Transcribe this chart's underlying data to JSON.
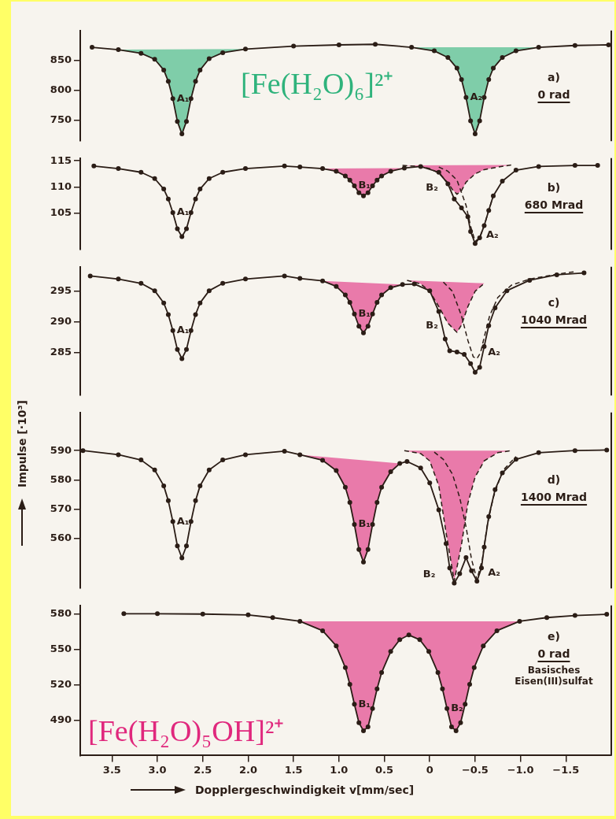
{
  "chart_data": [
    {
      "type": "line",
      "title": "[Fe(H₂O)₆]²⁺",
      "xlim": [
        3.85,
        -2.0
      ],
      "ylim": [
        715,
        900
      ],
      "yticks": [
        750,
        800,
        850
      ],
      "tick_labels": "y",
      "annotations": [
        "a)",
        "0 rad",
        {
          "text": "A₁",
          "x": 2.83,
          "y": 786
        },
        {
          "text": "A₂",
          "x": -0.4,
          "y": 788
        }
      ],
      "series": [
        {
          "marker": "circle",
          "color": "#2b1d16",
          "x": [
            3.72,
            3.43,
            3.18,
            3.03,
            2.93,
            2.88,
            2.83,
            2.78,
            2.73,
            2.68,
            2.63,
            2.58,
            2.53,
            2.43,
            2.28,
            2.03,
            1.5,
            1.0,
            0.6,
            0.2,
            -0.05,
            -0.2,
            -0.3,
            -0.35,
            -0.4,
            -0.45,
            -0.5,
            -0.55,
            -0.6,
            -0.65,
            -0.7,
            -0.8,
            -0.95,
            -1.2,
            -1.6,
            -1.97
          ],
          "values": [
            872,
            868,
            862,
            852,
            834,
            815,
            786,
            748,
            727,
            748,
            786,
            815,
            834,
            853,
            863,
            869,
            874,
            876,
            877,
            872,
            866,
            855,
            837,
            818,
            788,
            749,
            727,
            749,
            788,
            818,
            837,
            855,
            866,
            872,
            875,
            876
          ]
        },
        {
          "type": "area",
          "color": "#2fb37c",
          "x": [
            3.43,
            3.18,
            3.03,
            2.93,
            2.88,
            2.83,
            2.78,
            2.73,
            2.68,
            2.63,
            2.58,
            2.53,
            2.43,
            2.28,
            2.03
          ],
          "values": [
            868,
            862,
            852,
            834,
            815,
            786,
            748,
            727,
            748,
            786,
            815,
            834,
            853,
            863,
            869
          ]
        },
        {
          "type": "area",
          "color": "#2fb37c",
          "x": [
            0.2,
            -0.05,
            -0.2,
            -0.3,
            -0.35,
            -0.4,
            -0.45,
            -0.5,
            -0.55,
            -0.6,
            -0.65,
            -0.7,
            -0.8,
            -0.95,
            -1.2
          ],
          "values": [
            872,
            866,
            855,
            837,
            818,
            788,
            749,
            727,
            749,
            788,
            818,
            837,
            855,
            866,
            872
          ]
        }
      ]
    },
    {
      "type": "line",
      "xlim": [
        3.85,
        -2.0
      ],
      "ylim": [
        98,
        115.5
      ],
      "yticks": [
        105,
        110,
        115
      ],
      "tick_labels": "y",
      "annotations": [
        "b)",
        "680 Mrad",
        {
          "text": "A₁",
          "x": 2.83,
          "y": 105.1
        },
        {
          "text": "B₁",
          "x": 0.83,
          "y": 110.2
        },
        {
          "text": "B₂",
          "x": -0.3,
          "y": 108.6
        },
        {
          "text": "A₂",
          "x": -0.5,
          "y": 99.6
        }
      ],
      "series": [
        {
          "marker": "circle",
          "color": "#2b1d16",
          "x": [
            3.7,
            3.43,
            3.18,
            3.03,
            2.93,
            2.88,
            2.83,
            2.78,
            2.73,
            2.68,
            2.63,
            2.58,
            2.53,
            2.43,
            2.28,
            2.03,
            1.6,
            1.43,
            1.18,
            1.03,
            0.93,
            0.88,
            0.83,
            0.78,
            0.73,
            0.68,
            0.63,
            0.58,
            0.53,
            0.43,
            0.28,
            0.1,
            -0.1,
            -0.2,
            -0.27,
            -0.35,
            -0.42,
            -0.45,
            -0.5,
            -0.55,
            -0.6,
            -0.65,
            -0.7,
            -0.8,
            -0.95,
            -1.2,
            -1.6,
            -1.85
          ],
          "values": [
            114.0,
            113.5,
            112.8,
            111.6,
            109.6,
            107.7,
            105.1,
            102.0,
            100.5,
            102.0,
            105.1,
            107.7,
            109.6,
            111.6,
            112.8,
            113.5,
            114.0,
            113.8,
            113.5,
            113.0,
            112.1,
            111.3,
            110.2,
            108.9,
            108.3,
            108.9,
            110.2,
            111.3,
            112.1,
            113.0,
            113.6,
            113.9,
            112.8,
            110.6,
            107.7,
            106.0,
            104.3,
            101.5,
            99.2,
            100.3,
            102.6,
            105.5,
            108.3,
            111.1,
            113.2,
            113.9,
            114.1,
            114.1
          ]
        },
        {
          "type": "line",
          "color": "#2b1d16",
          "line_style": "dashed",
          "marker": "none",
          "x": [
            -0.1,
            -0.2,
            -0.3,
            -0.4,
            -0.45,
            -0.5,
            -0.55,
            -0.6,
            -0.65,
            -0.7
          ],
          "values": [
            113.8,
            113.0,
            111.3,
            106.5,
            102.5,
            99.6,
            100.3,
            102.6,
            105.5,
            108.3
          ]
        },
        {
          "type": "area",
          "color": "#e0287d",
          "x": [
            1.18,
            1.03,
            0.93,
            0.88,
            0.83,
            0.78,
            0.73,
            0.68,
            0.63,
            0.58,
            0.53,
            0.43,
            0.28
          ],
          "values": [
            113.5,
            113.0,
            112.1,
            111.3,
            110.2,
            108.9,
            108.3,
            108.9,
            110.2,
            111.3,
            112.1,
            113.0,
            113.6
          ]
        },
        {
          "type": "area",
          "color": "#e0287d",
          "line_style": "dashed",
          "x": [
            0.3,
            0.1,
            0,
            -0.1,
            -0.2,
            -0.25,
            -0.3,
            -0.35,
            -0.4,
            -0.5,
            -0.6,
            -0.75,
            -0.9
          ],
          "values": [
            114.1,
            113.9,
            113.5,
            112.6,
            110.8,
            109.5,
            108.6,
            109.3,
            110.9,
            112.5,
            113.3,
            113.8,
            114.2
          ]
        }
      ]
    },
    {
      "type": "line",
      "xlim": [
        3.85,
        -2.0
      ],
      "ylim": [
        278,
        299
      ],
      "yticks": [
        285,
        290,
        295
      ],
      "tick_labels": "y",
      "annotations": [
        "c)",
        "1040 Mrad",
        {
          "text": "A₁",
          "x": 2.83,
          "y": 288.6
        },
        {
          "text": "B₁",
          "x": 0.83,
          "y": 291.3
        },
        {
          "text": "B₂",
          "x": -0.3,
          "y": 288.3
        },
        {
          "text": "A₂",
          "x": -0.52,
          "y": 284.0
        }
      ],
      "series": [
        {
          "marker": "circle",
          "color": "#2b1d16",
          "x": [
            3.74,
            3.43,
            3.18,
            3.03,
            2.93,
            2.88,
            2.83,
            2.78,
            2.73,
            2.68,
            2.63,
            2.58,
            2.53,
            2.43,
            2.28,
            2.03,
            1.6,
            1.43,
            1.18,
            1.03,
            0.93,
            0.88,
            0.83,
            0.78,
            0.73,
            0.68,
            0.63,
            0.58,
            0.53,
            0.43,
            0.3,
            0.17,
            0,
            -0.1,
            -0.17,
            -0.22,
            -0.3,
            -0.38,
            -0.45,
            -0.5,
            -0.55,
            -0.6,
            -0.65,
            -0.72,
            -0.85,
            -1.1,
            -1.4,
            -1.7
          ],
          "values": [
            297.5,
            297.0,
            296.3,
            295.1,
            293.1,
            291.2,
            288.6,
            285.5,
            284.0,
            285.5,
            288.6,
            291.2,
            293.1,
            295.1,
            296.3,
            297.0,
            297.5,
            297.1,
            296.7,
            295.8,
            294.4,
            293.2,
            291.3,
            289.3,
            288.2,
            289.3,
            291.3,
            293.2,
            294.4,
            295.6,
            296.1,
            296.2,
            295.1,
            291.7,
            287.2,
            285.3,
            285.1,
            284.7,
            283.2,
            281.8,
            282.6,
            286.0,
            289.4,
            292.3,
            295.1,
            296.8,
            297.7,
            298.0
          ]
        },
        {
          "type": "line",
          "color": "#2b1d16",
          "line_style": "dashed",
          "marker": "none",
          "x": [
            -0.15,
            -0.25,
            -0.35,
            -0.42,
            -0.48,
            -0.52,
            -0.56,
            -0.6,
            -0.66,
            -0.75,
            -0.9,
            -1.1,
            -1.4,
            -1.6
          ],
          "values": [
            296.5,
            295.0,
            291.0,
            287.0,
            284.3,
            284.0,
            285.0,
            287.5,
            291.0,
            294.0,
            296.0,
            297.0,
            297.8,
            298.2
          ]
        },
        {
          "type": "area",
          "color": "#e0287d",
          "x": [
            1.18,
            1.03,
            0.93,
            0.88,
            0.83,
            0.78,
            0.73,
            0.68,
            0.63,
            0.58,
            0.53,
            0.43,
            0.3
          ],
          "values": [
            296.7,
            295.8,
            294.4,
            293.2,
            291.3,
            289.3,
            288.2,
            289.3,
            291.3,
            293.2,
            294.4,
            295.6,
            296.1
          ]
        },
        {
          "type": "area",
          "color": "#e0287d",
          "line_style": "dashed",
          "x": [
            0.25,
            0.1,
            0,
            -0.1,
            -0.2,
            -0.3,
            -0.35,
            -0.42,
            -0.5,
            -0.6
          ],
          "values": [
            296.8,
            296.2,
            295.0,
            292.5,
            289.8,
            288.3,
            289.5,
            292.5,
            295.0,
            296.3
          ]
        }
      ]
    },
    {
      "type": "line",
      "xlim": [
        3.85,
        -2.0
      ],
      "ylim": [
        543,
        603
      ],
      "yticks": [
        560,
        570,
        580,
        590
      ],
      "tick_labels": "y",
      "ylabel": "Impulse [·10³]",
      "annotations": [
        "d)",
        "1400 Mrad",
        {
          "text": "A₁",
          "x": 2.83,
          "y": 565.8
        },
        {
          "text": "B₁",
          "x": 0.83,
          "y": 564.8
        },
        {
          "text": "B₂",
          "x": -0.27,
          "y": 545.5
        },
        {
          "text": "A₂",
          "x": -0.52,
          "y": 546.0
        }
      ],
      "series": [
        {
          "marker": "circle",
          "color": "#2b1d16",
          "x": [
            3.82,
            3.43,
            3.18,
            3.03,
            2.93,
            2.88,
            2.83,
            2.78,
            2.73,
            2.68,
            2.63,
            2.58,
            2.53,
            2.43,
            2.28,
            2.03,
            1.6,
            1.43,
            1.18,
            1.03,
            0.93,
            0.88,
            0.83,
            0.78,
            0.73,
            0.68,
            0.63,
            0.58,
            0.53,
            0.43,
            0.33,
            0.25,
            0.1,
            0,
            -0.1,
            -0.18,
            -0.22,
            -0.27,
            -0.33,
            -0.4,
            -0.46,
            -0.52,
            -0.57,
            -0.6,
            -0.65,
            -0.72,
            -0.8,
            -0.95,
            -1.2,
            -1.6,
            -1.95
          ],
          "values": [
            590.0,
            588.6,
            586.8,
            583.4,
            578.0,
            572.9,
            565.8,
            557.5,
            553.4,
            557.5,
            565.8,
            572.9,
            578.0,
            583.4,
            586.8,
            588.6,
            589.8,
            588.6,
            586.7,
            583.2,
            577.5,
            572.3,
            564.8,
            556.3,
            552.0,
            556.3,
            564.8,
            572.3,
            577.5,
            582.8,
            585.6,
            586.3,
            584.1,
            579.0,
            569.8,
            558.3,
            550.0,
            544.8,
            548.0,
            553.5,
            549.0,
            545.5,
            550.0,
            557.1,
            567.5,
            576.7,
            582.4,
            587.0,
            589.3,
            590.0,
            590.2
          ]
        },
        {
          "type": "line",
          "color": "#2b1d16",
          "line_style": "dashed",
          "marker": "none",
          "x": [
            -0.05,
            -0.15,
            -0.25,
            -0.33,
            -0.4,
            -0.46,
            -0.52,
            -0.58,
            -0.63,
            -0.7,
            -0.8,
            -0.95
          ],
          "values": [
            589.5,
            587.0,
            582.0,
            574.0,
            564.0,
            553.0,
            546.0,
            553.0,
            564.0,
            574.0,
            583.0,
            588.0
          ]
        },
        {
          "type": "area",
          "color": "#e0287d",
          "x": [
            1.43,
            1.18,
            1.03,
            0.93,
            0.88,
            0.83,
            0.78,
            0.73,
            0.68,
            0.63,
            0.58,
            0.53,
            0.43,
            0.33
          ],
          "values": [
            588.6,
            586.7,
            583.2,
            577.5,
            572.3,
            564.8,
            556.3,
            552.0,
            556.3,
            564.8,
            572.3,
            577.5,
            582.8,
            585.6
          ]
        },
        {
          "type": "area",
          "color": "#e0287d",
          "line_style": "dashed",
          "x": [
            0.28,
            0.1,
            0,
            -0.1,
            -0.18,
            -0.27,
            -0.35,
            -0.42,
            -0.5,
            -0.6,
            -0.75,
            -0.9
          ],
          "values": [
            590.0,
            589.0,
            586.5,
            578.0,
            562.0,
            545.5,
            558.0,
            572.0,
            581.0,
            586.5,
            589.3,
            590.0
          ]
        }
      ]
    },
    {
      "type": "line",
      "title": "[Fe(H₂O)₅OH]²⁺",
      "xlabel": "Dopplergeschwindigkeit v[mm/sec]",
      "xlim": [
        3.85,
        -2.0
      ],
      "ylim": [
        460,
        587
      ],
      "yticks": [
        490,
        520,
        550,
        580
      ],
      "xticks": [
        3.5,
        {
          "value": 3,
          "label": "3.0"
        },
        2.5,
        {
          "value": 2,
          "label": "2.0"
        },
        1.5,
        {
          "value": 1,
          "label": "1.0"
        },
        0.5,
        0,
        {
          "value": -0.5,
          "label": "−0.5"
        },
        {
          "value": -1,
          "label": "−1.0"
        },
        {
          "value": -1.5,
          "label": "−1.5"
        }
      ],
      "annotations": [
        "e)",
        "0 rad",
        "Basisches Eisen(III)sulfat",
        {
          "text": "B₁",
          "x": 0.83,
          "y": 503.4
        },
        {
          "text": "B₂",
          "x": -0.19,
          "y": 499.8
        }
      ],
      "series": [
        {
          "marker": "circle",
          "color": "#2b1d16",
          "x": [
            3.37,
            3.0,
            2.5,
            2.0,
            1.73,
            1.43,
            1.18,
            1.03,
            0.93,
            0.88,
            0.83,
            0.78,
            0.73,
            0.68,
            0.63,
            0.58,
            0.53,
            0.43,
            0.33,
            0.23,
            0.11,
            0.01,
            -0.09,
            -0.14,
            -0.19,
            -0.24,
            -0.29,
            -0.34,
            -0.39,
            -0.44,
            -0.49,
            -0.59,
            -0.74,
            -0.99,
            -1.29,
            -1.6,
            -1.95
          ],
          "values": [
            580,
            580,
            579.7,
            579,
            576.7,
            573.6,
            565.6,
            552.8,
            534.4,
            520.3,
            503.4,
            487.7,
            481,
            484.2,
            499.8,
            516.4,
            530.2,
            548,
            558,
            562,
            558,
            548,
            530.2,
            516.4,
            499.8,
            484.2,
            481,
            487.7,
            503.4,
            520.3,
            534.4,
            552.8,
            565.6,
            573.6,
            576.7,
            578.5,
            579.5
          ]
        },
        {
          "type": "area",
          "color": "#e0287d",
          "x": [
            1.43,
            1.18,
            1.03,
            0.93,
            0.88,
            0.83,
            0.78,
            0.73,
            0.68,
            0.63,
            0.58,
            0.53,
            0.43,
            0.33,
            0.23,
            0.11,
            0.01,
            -0.09,
            -0.14,
            -0.19,
            -0.24,
            -0.29,
            -0.34,
            -0.39,
            -0.44,
            -0.49,
            -0.59,
            -0.74,
            -0.99
          ],
          "values": [
            573.6,
            565.6,
            552.8,
            534.4,
            520.3,
            503.4,
            487.7,
            481,
            484.2,
            499.8,
            516.4,
            530.2,
            548,
            558,
            562,
            558,
            548,
            530.2,
            516.4,
            499.8,
            484.2,
            481,
            487.7,
            503.4,
            520.3,
            534.4,
            552.8,
            565.6,
            573.6
          ]
        }
      ]
    }
  ]
}
